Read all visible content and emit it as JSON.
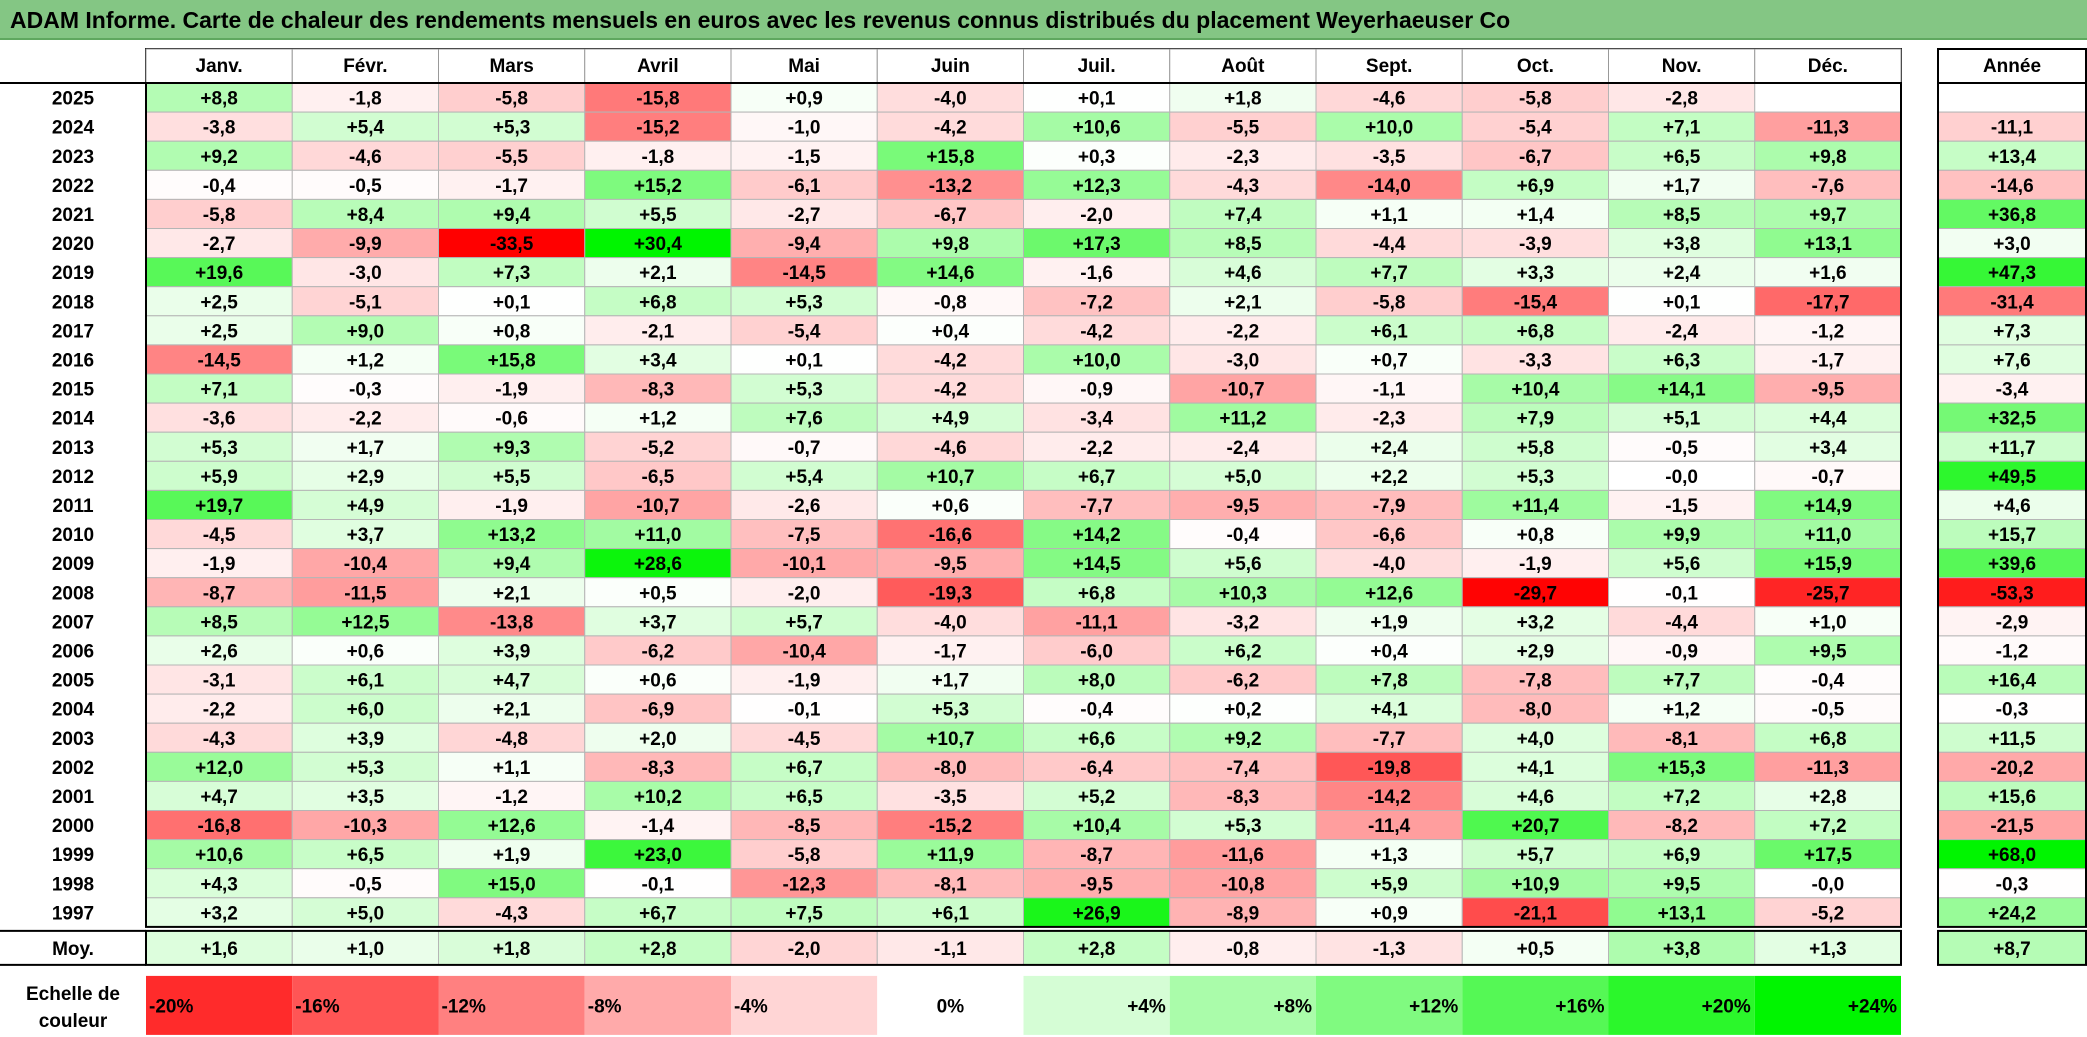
{
  "title": "ADAM Informe. Carte de chaleur des rendements mensuels en euros avec les revenus connus distribués du placement Weyerhaeuser Co",
  "chart_data": {
    "type": "heatmap",
    "title": "ADAM Informe. Carte de chaleur des rendements mensuels en euros avec les revenus connus distribués du placement Weyerhaeuser Co",
    "months": [
      "Janv.",
      "Févr.",
      "Mars",
      "Avril",
      "Mai",
      "Juin",
      "Juil.",
      "Août",
      "Sept.",
      "Oct.",
      "Nov.",
      "Déc."
    ],
    "year_header": "Année",
    "rows": [
      {
        "year": "2025",
        "values": [
          "+8,8",
          "-1,8",
          "-5,8",
          "-15,8",
          "+0,9",
          "-4,0",
          "+0,1",
          "+1,8",
          "-4,6",
          "-5,8",
          "-2,8",
          ""
        ],
        "annual": ""
      },
      {
        "year": "2024",
        "values": [
          "-3,8",
          "+5,4",
          "+5,3",
          "-15,2",
          "-1,0",
          "-4,2",
          "+10,6",
          "-5,5",
          "+10,0",
          "-5,4",
          "+7,1",
          "-11,3"
        ],
        "annual": "-11,1"
      },
      {
        "year": "2023",
        "values": [
          "+9,2",
          "-4,6",
          "-5,5",
          "-1,8",
          "-1,5",
          "+15,8",
          "+0,3",
          "-2,3",
          "-3,5",
          "-6,7",
          "+6,5",
          "+9,8"
        ],
        "annual": "+13,4"
      },
      {
        "year": "2022",
        "values": [
          "-0,4",
          "-0,5",
          "-1,7",
          "+15,2",
          "-6,1",
          "-13,2",
          "+12,3",
          "-4,3",
          "-14,0",
          "+6,9",
          "+1,7",
          "-7,6"
        ],
        "annual": "-14,6"
      },
      {
        "year": "2021",
        "values": [
          "-5,8",
          "+8,4",
          "+9,4",
          "+5,5",
          "-2,7",
          "-6,7",
          "-2,0",
          "+7,4",
          "+1,1",
          "+1,4",
          "+8,5",
          "+9,7"
        ],
        "annual": "+36,8"
      },
      {
        "year": "2020",
        "values": [
          "-2,7",
          "-9,9",
          "-33,5",
          "+30,4",
          "-9,4",
          "+9,8",
          "+17,3",
          "+8,5",
          "-4,4",
          "-3,9",
          "+3,8",
          "+13,1"
        ],
        "annual": "+3,0"
      },
      {
        "year": "2019",
        "values": [
          "+19,6",
          "-3,0",
          "+7,3",
          "+2,1",
          "-14,5",
          "+14,6",
          "-1,6",
          "+4,6",
          "+7,7",
          "+3,3",
          "+2,4",
          "+1,6"
        ],
        "annual": "+47,3"
      },
      {
        "year": "2018",
        "values": [
          "+2,5",
          "-5,1",
          "+0,1",
          "+6,8",
          "+5,3",
          "-0,8",
          "-7,2",
          "+2,1",
          "-5,8",
          "-15,4",
          "+0,1",
          "-17,7"
        ],
        "annual": "-31,4"
      },
      {
        "year": "2017",
        "values": [
          "+2,5",
          "+9,0",
          "+0,8",
          "-2,1",
          "-5,4",
          "+0,4",
          "-4,2",
          "-2,2",
          "+6,1",
          "+6,8",
          "-2,4",
          "-1,2"
        ],
        "annual": "+7,3"
      },
      {
        "year": "2016",
        "values": [
          "-14,5",
          "+1,2",
          "+15,8",
          "+3,4",
          "+0,1",
          "-4,2",
          "+10,0",
          "-3,0",
          "+0,7",
          "-3,3",
          "+6,3",
          "-1,7"
        ],
        "annual": "+7,6"
      },
      {
        "year": "2015",
        "values": [
          "+7,1",
          "-0,3",
          "-1,9",
          "-8,3",
          "+5,3",
          "-4,2",
          "-0,9",
          "-10,7",
          "-1,1",
          "+10,4",
          "+14,1",
          "-9,5"
        ],
        "annual": "-3,4"
      },
      {
        "year": "2014",
        "values": [
          "-3,6",
          "-2,2",
          "-0,6",
          "+1,2",
          "+7,6",
          "+4,9",
          "-3,4",
          "+11,2",
          "-2,3",
          "+7,9",
          "+5,1",
          "+4,4"
        ],
        "annual": "+32,5"
      },
      {
        "year": "2013",
        "values": [
          "+5,3",
          "+1,7",
          "+9,3",
          "-5,2",
          "-0,7",
          "-4,6",
          "-2,2",
          "-2,4",
          "+2,4",
          "+5,8",
          "-0,5",
          "+3,4"
        ],
        "annual": "+11,7"
      },
      {
        "year": "2012",
        "values": [
          "+5,9",
          "+2,9",
          "+5,5",
          "-6,5",
          "+5,4",
          "+10,7",
          "+6,7",
          "+5,0",
          "+2,2",
          "+5,3",
          "-0,0",
          "-0,7"
        ],
        "annual": "+49,5"
      },
      {
        "year": "2011",
        "values": [
          "+19,7",
          "+4,9",
          "-1,9",
          "-10,7",
          "-2,6",
          "+0,6",
          "-7,7",
          "-9,5",
          "-7,9",
          "+11,4",
          "-1,5",
          "+14,9"
        ],
        "annual": "+4,6"
      },
      {
        "year": "2010",
        "values": [
          "-4,5",
          "+3,7",
          "+13,2",
          "+11,0",
          "-7,5",
          "-16,6",
          "+14,2",
          "-0,4",
          "-6,6",
          "+0,8",
          "+9,9",
          "+11,0"
        ],
        "annual": "+15,7"
      },
      {
        "year": "2009",
        "values": [
          "-1,9",
          "-10,4",
          "+9,4",
          "+28,6",
          "-10,1",
          "-9,5",
          "+14,5",
          "+5,6",
          "-4,0",
          "-1,9",
          "+5,6",
          "+15,9"
        ],
        "annual": "+39,6"
      },
      {
        "year": "2008",
        "values": [
          "-8,7",
          "-11,5",
          "+2,1",
          "+0,5",
          "-2,0",
          "-19,3",
          "+6,8",
          "+10,3",
          "+12,6",
          "-29,7",
          "-0,1",
          "-25,7"
        ],
        "annual": "-53,3"
      },
      {
        "year": "2007",
        "values": [
          "+8,5",
          "+12,5",
          "-13,8",
          "+3,7",
          "+5,7",
          "-4,0",
          "-11,1",
          "-3,2",
          "+1,9",
          "+3,2",
          "-4,4",
          "+1,0"
        ],
        "annual": "-2,9"
      },
      {
        "year": "2006",
        "values": [
          "+2,6",
          "+0,6",
          "+3,9",
          "-6,2",
          "-10,4",
          "-1,7",
          "-6,0",
          "+6,2",
          "+0,4",
          "+2,9",
          "-0,9",
          "+9,5"
        ],
        "annual": "-1,2"
      },
      {
        "year": "2005",
        "values": [
          "-3,1",
          "+6,1",
          "+4,7",
          "+0,6",
          "-1,9",
          "+1,7",
          "+8,0",
          "-6,2",
          "+7,8",
          "-7,8",
          "+7,7",
          "-0,4"
        ],
        "annual": "+16,4"
      },
      {
        "year": "2004",
        "values": [
          "-2,2",
          "+6,0",
          "+2,1",
          "-6,9",
          "-0,1",
          "+5,3",
          "-0,4",
          "+0,2",
          "+4,1",
          "-8,0",
          "+1,2",
          "-0,5"
        ],
        "annual": "-0,3"
      },
      {
        "year": "2003",
        "values": [
          "-4,3",
          "+3,9",
          "-4,8",
          "+2,0",
          "-4,5",
          "+10,7",
          "+6,6",
          "+9,2",
          "-7,7",
          "+4,0",
          "-8,1",
          "+6,8"
        ],
        "annual": "+11,5"
      },
      {
        "year": "2002",
        "values": [
          "+12,0",
          "+5,3",
          "+1,1",
          "-8,3",
          "+6,7",
          "-8,0",
          "-6,4",
          "-7,4",
          "-19,8",
          "+4,1",
          "+15,3",
          "-11,3"
        ],
        "annual": "-20,2"
      },
      {
        "year": "2001",
        "values": [
          "+4,7",
          "+3,5",
          "-1,2",
          "+10,2",
          "+6,5",
          "-3,5",
          "+5,2",
          "-8,3",
          "-14,2",
          "+4,6",
          "+7,2",
          "+2,8"
        ],
        "annual": "+15,6"
      },
      {
        "year": "2000",
        "values": [
          "-16,8",
          "-10,3",
          "+12,6",
          "-1,4",
          "-8,5",
          "-15,2",
          "+10,4",
          "+5,3",
          "-11,4",
          "+20,7",
          "-8,2",
          "+7,2"
        ],
        "annual": "-21,5"
      },
      {
        "year": "1999",
        "values": [
          "+10,6",
          "+6,5",
          "+1,9",
          "+23,0",
          "-5,8",
          "+11,9",
          "-8,7",
          "-11,6",
          "+1,3",
          "+5,7",
          "+6,9",
          "+17,5"
        ],
        "annual": "+68,0"
      },
      {
        "year": "1998",
        "values": [
          "+4,3",
          "-0,5",
          "+15,0",
          "-0,1",
          "-12,3",
          "-8,1",
          "-9,5",
          "-10,8",
          "+5,9",
          "+10,9",
          "+9,5",
          "-0,0"
        ],
        "annual": "-0,3"
      },
      {
        "year": "1997",
        "values": [
          "+3,2",
          "+5,0",
          "-4,3",
          "+6,7",
          "+7,5",
          "+6,1",
          "+26,9",
          "-8,9",
          "+0,9",
          "-21,1",
          "+13,1",
          "-5,2"
        ],
        "annual": "+24,2"
      }
    ],
    "average": {
      "label": "Moy.",
      "values": [
        "+1,6",
        "+1,0",
        "+1,8",
        "+2,8",
        "-2,0",
        "-1,1",
        "+2,8",
        "-0,8",
        "-1,3",
        "+0,5",
        "+3,8",
        "+1,3"
      ],
      "annual": "+8,7"
    },
    "scale": {
      "label_line1": "Echelle de",
      "label_line2": "couleur",
      "steps": [
        "-20%",
        "-16%",
        "-12%",
        "-8%",
        "-4%",
        "0%",
        "+4%",
        "+8%",
        "+12%",
        "+16%",
        "+20%",
        "+24%"
      ],
      "values": [
        -20,
        -16,
        -12,
        -8,
        -4,
        0,
        4,
        8,
        12,
        16,
        20,
        24
      ]
    },
    "colors": {
      "negative": "#ff0000",
      "neutral": "#ffffff",
      "positive": "#00ee00",
      "header_bg": "#84c684"
    }
  }
}
